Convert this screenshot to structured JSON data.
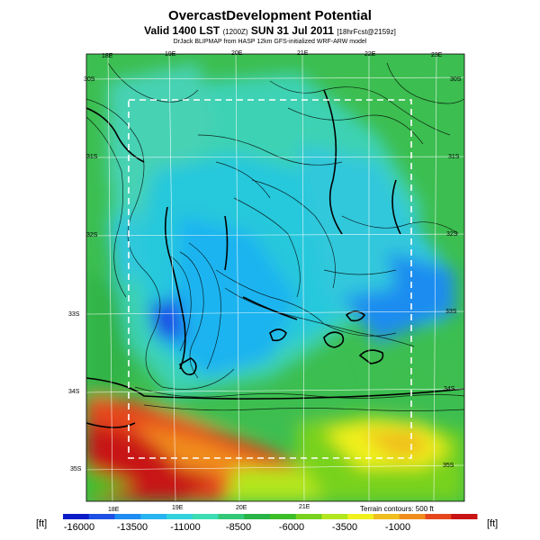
{
  "header": {
    "title": "OvercastDevelopment Potential",
    "subtitle_main": "Valid 1400 LST",
    "subtitle_small1": "(1200Z)",
    "subtitle_date": "SUN 31 Jul 2011",
    "subtitle_small2": "[18hrFcst@2159z]",
    "source": "DrJack BLIPMAP from HASP 12km GFS-initialized WRF-ARW model"
  },
  "map": {
    "lon_labels_top": [
      "18E",
      "19E",
      "20E",
      "21E",
      "22E",
      "23E"
    ],
    "lon_labels_bottom": [
      "18E",
      "19E",
      "20E",
      "21E"
    ],
    "lat_labels_left": [
      "30S",
      "31S",
      "32S",
      "33S",
      "34S",
      "35S"
    ],
    "lat_labels_right": [
      "30S",
      "31S",
      "32S",
      "33S",
      "34S",
      "35S"
    ],
    "terrain_note": "Terrain contours: 500 ft"
  },
  "colorbar": {
    "unit_left": "[ft]",
    "unit_right": "[ft]",
    "tick_labels": [
      "-16000",
      "-13500",
      "-11000",
      "-8500",
      "-6000",
      "-3500",
      "-1000"
    ],
    "colors": [
      "#0a1cc8",
      "#1e50e6",
      "#1e8cf0",
      "#28b4f0",
      "#32d2dc",
      "#3cdcb4",
      "#32c878",
      "#28b446",
      "#3cbe28",
      "#78d21e",
      "#b4e61e",
      "#f0f01e",
      "#f0be1e",
      "#f08c1e",
      "#e6461e",
      "#c81414"
    ]
  },
  "chart_data": {
    "type": "heatmap",
    "title": "OvercastDevelopment Potential",
    "units": "ft",
    "scale_ticks": [
      -16000,
      -13500,
      -11000,
      -8500,
      -6000,
      -3500,
      -1000
    ],
    "extent_lon": [
      "18E",
      "23E"
    ],
    "extent_lat": [
      "30S",
      "35S"
    ]
  }
}
